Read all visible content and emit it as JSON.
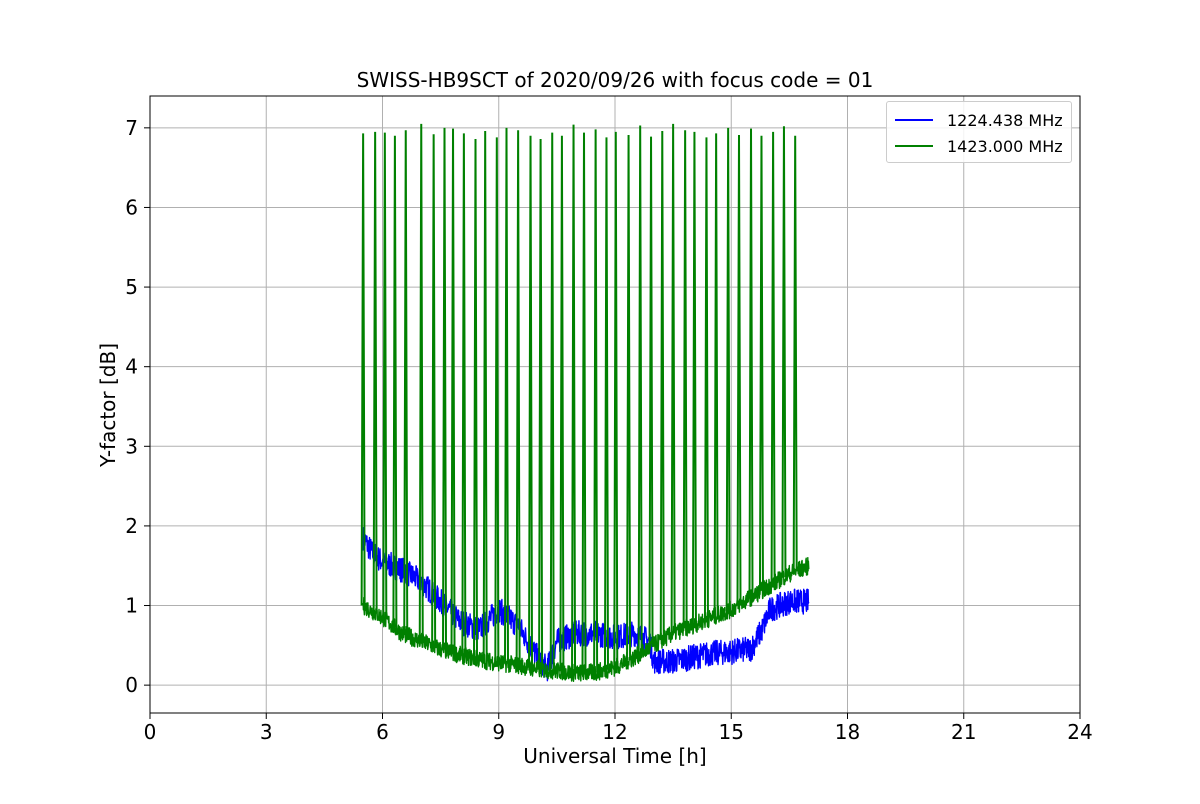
{
  "chart_data": {
    "type": "line",
    "title": "SWISS-HB9SCT of 2020/09/26 with focus code = 01",
    "xlabel": "Universal Time [h]",
    "ylabel": "Y-factor [dB]",
    "xlim": [
      0,
      24
    ],
    "ylim": [
      -0.35,
      7.4
    ],
    "xticks": [
      0,
      3,
      6,
      9,
      12,
      15,
      18,
      21,
      24
    ],
    "yticks": [
      0,
      1,
      2,
      3,
      4,
      5,
      6,
      7
    ],
    "grid": true,
    "legend_position": "top-right",
    "series": [
      {
        "name": "1224.438 MHz",
        "color": "#0000ff",
        "x": [
          5.5,
          5.75,
          6.0,
          6.5,
          7.0,
          7.5,
          8.0,
          8.5,
          9.0,
          9.5,
          10.0,
          10.25,
          10.5,
          11.0,
          11.5,
          12.0,
          12.5,
          12.9,
          13.0,
          13.5,
          14.0,
          14.5,
          15.0,
          15.5,
          15.8,
          16.0,
          16.5,
          17.0
        ],
        "y": [
          1.85,
          1.65,
          1.55,
          1.45,
          1.3,
          1.05,
          0.8,
          0.7,
          0.95,
          0.75,
          0.35,
          0.2,
          0.55,
          0.65,
          0.65,
          0.6,
          0.65,
          0.55,
          0.3,
          0.3,
          0.35,
          0.4,
          0.42,
          0.45,
          0.7,
          0.95,
          1.05,
          1.05
        ]
      },
      {
        "name": "1423.000 MHz",
        "color": "#008000",
        "x": [
          5.5,
          6.0,
          6.5,
          7.0,
          7.5,
          8.0,
          8.5,
          9.0,
          9.5,
          10.0,
          10.5,
          11.0,
          11.5,
          12.0,
          12.5,
          13.0,
          13.5,
          14.0,
          14.5,
          15.0,
          15.5,
          16.0,
          16.5,
          17.0
        ],
        "y": [
          1.0,
          0.85,
          0.65,
          0.55,
          0.45,
          0.38,
          0.32,
          0.28,
          0.25,
          0.2,
          0.18,
          0.15,
          0.16,
          0.22,
          0.35,
          0.5,
          0.65,
          0.75,
          0.85,
          0.95,
          1.1,
          1.25,
          1.4,
          1.5
        ]
      }
    ],
    "spike_series": {
      "name": "1423.000 MHz",
      "x": [
        5.5,
        5.81,
        6.06,
        6.32,
        6.6,
        7.0,
        7.32,
        7.6,
        7.82,
        8.1,
        8.4,
        8.65,
        8.95,
        9.2,
        9.5,
        9.82,
        10.08,
        10.38,
        10.63,
        10.93,
        11.2,
        11.5,
        11.78,
        12.02,
        12.35,
        12.65,
        12.93,
        13.22,
        13.5,
        13.81,
        14.05,
        14.36,
        14.61,
        14.92,
        15.2,
        15.51,
        15.78,
        16.08,
        16.36,
        16.65
      ],
      "y": [
        6.93,
        6.95,
        6.94,
        6.9,
        6.97,
        7.05,
        6.92,
        7.0,
        6.99,
        6.93,
        6.86,
        6.96,
        6.88,
        7.0,
        6.97,
        6.9,
        6.86,
        6.94,
        6.9,
        7.04,
        6.94,
        6.98,
        6.88,
        6.95,
        6.91,
        7.03,
        6.89,
        6.96,
        7.05,
        6.97,
        6.95,
        6.88,
        6.93,
        7.0,
        6.91,
        6.99,
        6.9,
        6.95,
        7.02,
        6.9
      ]
    }
  }
}
